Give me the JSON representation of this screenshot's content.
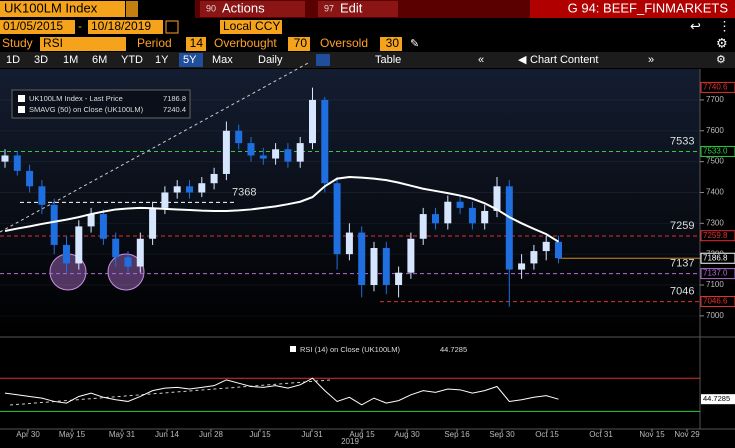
{
  "toolbar": {
    "security": "UK100LM Index",
    "actions_code": "90",
    "actions": "Actions",
    "edit_code": "97",
    "edit": "Edit",
    "page": "G 94: BEEF_FINMARKETS",
    "start_date": "01/05/2015",
    "end_date": "10/18/2019",
    "currency": "Local CCY",
    "study_label": "Study",
    "study": "RSI",
    "period_label": "Period",
    "period": 14,
    "overbought_label": "Overbought",
    "overbought": 70,
    "oversold_label": "Oversold",
    "oversold": 30,
    "ranges": [
      "1D",
      "3D",
      "1M",
      "6M",
      "YTD",
      "1Y",
      "5Y",
      "Max"
    ],
    "selected_range": "5Y",
    "frequency": "Daily",
    "table": "Table",
    "chart_content": "Chart Content"
  },
  "chart": {
    "legend": {
      "price_name": "UK100LM Index - Last Price",
      "price_last": 7186.8,
      "sma_name": "SMAVG (50)  on Close (UK100LM)",
      "sma_last": 7240.4,
      "rsi_name": "RSI (14)  on Close (UK100LM)",
      "rsi_last": 44.7285
    },
    "ylim": [
      6938,
      7797
    ],
    "yticks": [
      7000,
      7100,
      7200,
      7300,
      7400,
      7500,
      7600,
      7700
    ],
    "up_color": "#d6e6ff",
    "down_color": "#1f6fe0",
    "sma_color": "#ffffff",
    "rsi_color": "#ffffff",
    "open": [
      7500,
      7520,
      7470,
      7420,
      7360,
      7230,
      7170,
      7290,
      7330,
      7250,
      7190,
      7160,
      7250,
      7350,
      7400,
      7420,
      7400,
      7430,
      7460,
      7600,
      7560,
      7520,
      7510,
      7540,
      7500,
      7560,
      7700,
      7430,
      7200,
      7270,
      7100,
      7220,
      7100,
      7140,
      7250,
      7330,
      7300,
      7370,
      7350,
      7300,
      7340,
      7420,
      7150,
      7170,
      7210,
      7240
    ],
    "high": [
      7540,
      7535,
      7490,
      7440,
      7380,
      7260,
      7310,
      7350,
      7345,
      7270,
      7210,
      7270,
      7370,
      7420,
      7440,
      7440,
      7450,
      7480,
      7630,
      7620,
      7580,
      7545,
      7560,
      7560,
      7580,
      7740,
      7710,
      7450,
      7300,
      7290,
      7240,
      7240,
      7160,
      7270,
      7350,
      7350,
      7390,
      7390,
      7370,
      7360,
      7450,
      7440,
      7200,
      7230,
      7260,
      7260
    ],
    "low": [
      7480,
      7455,
      7400,
      7330,
      7200,
      7140,
      7150,
      7270,
      7230,
      7160,
      7140,
      7140,
      7230,
      7330,
      7380,
      7380,
      7385,
      7410,
      7440,
      7540,
      7500,
      7490,
      7490,
      7480,
      7480,
      7540,
      7400,
      7150,
      7180,
      7060,
      7080,
      7070,
      7060,
      7120,
      7230,
      7280,
      7280,
      7330,
      7280,
      7280,
      7320,
      7030,
      7120,
      7150,
      7180,
      7170
    ],
    "close": [
      7520,
      7470,
      7420,
      7360,
      7230,
      7170,
      7290,
      7330,
      7250,
      7190,
      7160,
      7250,
      7350,
      7400,
      7420,
      7400,
      7430,
      7460,
      7600,
      7560,
      7520,
      7510,
      7540,
      7500,
      7560,
      7700,
      7430,
      7200,
      7270,
      7100,
      7220,
      7100,
      7140,
      7250,
      7330,
      7300,
      7370,
      7350,
      7300,
      7340,
      7420,
      7150,
      7170,
      7210,
      7240,
      7186.8
    ],
    "sma": [
      7275,
      7283,
      7290,
      7298,
      7305,
      7312,
      7320,
      7330,
      7338,
      7345,
      7348,
      7350,
      7349,
      7347,
      7345,
      7343,
      7341,
      7340,
      7340,
      7342,
      7345,
      7350,
      7355,
      7362,
      7370,
      7385,
      7420,
      7445,
      7450,
      7448,
      7445,
      7440,
      7432,
      7422,
      7412,
      7405,
      7398,
      7390,
      7380,
      7365,
      7345,
      7320,
      7300,
      7282,
      7265,
      7240.4
    ],
    "rsi_ylim": [
      10,
      110
    ],
    "rsi": [
      52,
      50,
      48,
      46,
      42,
      40,
      48,
      52,
      47,
      44,
      42,
      48,
      55,
      58,
      59,
      57,
      59,
      61,
      68,
      64,
      60,
      59,
      61,
      58,
      62,
      70,
      55,
      42,
      47,
      38,
      46,
      40,
      43,
      50,
      55,
      53,
      57,
      56,
      52,
      55,
      60,
      42,
      44,
      47,
      49,
      44.7285
    ],
    "levels": [
      {
        "value": 7533,
        "color": "#2ecc40"
      },
      {
        "value": 7368,
        "color": "#ffffff"
      },
      {
        "value": 7259,
        "color": "#e03030"
      },
      {
        "value": 7137,
        "color": "#b070d0"
      },
      {
        "value": 7046,
        "color": "#e03030"
      }
    ],
    "badges": [
      {
        "value": 7740.6,
        "label": "7740.6",
        "color": "#e03030"
      },
      {
        "value": 7533.0,
        "label": "7533.0",
        "color": "#2ecc40"
      },
      {
        "value": 7259.8,
        "label": "7259.8",
        "color": "#e03030"
      },
      {
        "value": 7186.8,
        "label": "7186.8",
        "color": "#ffffff"
      },
      {
        "value": 7137.0,
        "label": "7137.0",
        "color": "#b070d0"
      },
      {
        "value": 7046.6,
        "label": "7046.6",
        "color": "#e03030"
      }
    ],
    "x_labels": [
      "Apr 30",
      "May 15",
      "May 31",
      "Jun 14",
      "Jun 28",
      "Jul 15",
      "Jul 31",
      "Aug 15",
      "Aug 30",
      "Sep 16",
      "Sep 30",
      "Oct 15",
      "Oct 31",
      "Nov 15",
      "Nov 29"
    ],
    "year": "2019"
  }
}
